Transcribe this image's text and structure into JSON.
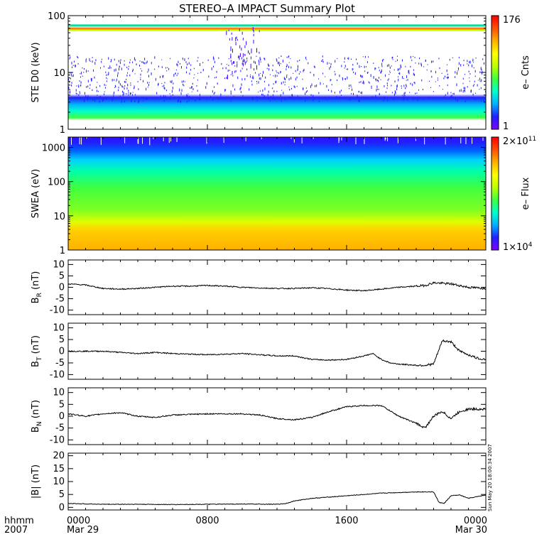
{
  "title": "STEREO–A IMPACT Summary Plot",
  "timestamp": "Sun May 20 18:00:34 2007",
  "colors": {
    "trace": "#000000",
    "colorbar_stops": [
      "#7f00ff",
      "#2020ff",
      "#00b0ff",
      "#00ffcc",
      "#40ff40",
      "#c0ff00",
      "#ffff00",
      "#ffb000",
      "#ff5000",
      "#ff0000"
    ]
  },
  "xaxis": {
    "corner_top": "hhmm",
    "corner_bottom": "2007",
    "ticks": [
      {
        "value": 0,
        "label": "0000",
        "sublabel": "Mar 29"
      },
      {
        "value": 8,
        "label": "0800",
        "sublabel": ""
      },
      {
        "value": 16,
        "label": "1600",
        "sublabel": ""
      },
      {
        "value": 24,
        "label": "0000",
        "sublabel": "Mar 30"
      }
    ],
    "range_hours": [
      0,
      24
    ]
  },
  "chart_data": [
    {
      "type": "heatmap",
      "ylabel": "STE D0 (keV)",
      "yscale": "log",
      "ylim": [
        1,
        100
      ],
      "yticks": [
        "1",
        "10",
        "100"
      ],
      "colorbar": {
        "label": "e– Cnts",
        "max": "176",
        "min": "1",
        "scale": "log"
      }
    },
    {
      "type": "heatmap",
      "ylabel": "SWEA (eV)",
      "yscale": "log",
      "ylim": [
        1,
        2000
      ],
      "yticks": [
        "1",
        "10",
        "100",
        "1000"
      ],
      "colorbar": {
        "label": "e– Flux",
        "max": "2×10",
        "max_exp": "11",
        "min": "1×10",
        "min_exp": "4",
        "scale": "log"
      }
    },
    {
      "type": "line",
      "ylabel": "B",
      "ysub": "R",
      "yunit": "(nT)",
      "ylim": [
        -12,
        12
      ],
      "yticks": [
        "10",
        "5",
        "0",
        "-5",
        "-10"
      ],
      "x": [
        0,
        1,
        2,
        3,
        4,
        5,
        6,
        7,
        8,
        9,
        10,
        11,
        12,
        13,
        14,
        15,
        16,
        17,
        18,
        19,
        20,
        20.5,
        21,
        22,
        23,
        24
      ],
      "y": [
        1.5,
        1,
        -0.5,
        -0.8,
        -0.5,
        0,
        0.5,
        0.5,
        0.8,
        0.5,
        0,
        -0.3,
        -0.5,
        -0.5,
        -0.2,
        -0.6,
        -1.2,
        -1.5,
        -0.8,
        0,
        0.5,
        0.8,
        2,
        1.5,
        0,
        -0.5
      ]
    },
    {
      "type": "line",
      "ylabel": "B",
      "ysub": "T",
      "yunit": "(nT)",
      "ylim": [
        -12,
        12
      ],
      "yticks": [
        "10",
        "5",
        "0",
        "-5",
        "-10"
      ],
      "x": [
        0,
        2,
        4,
        5,
        6,
        8,
        10,
        11,
        12,
        13,
        14,
        15,
        16,
        17,
        17.5,
        18,
        18.5,
        19,
        20,
        20.5,
        21,
        21.5,
        22,
        22.5,
        23,
        23.5,
        24
      ],
      "y": [
        0,
        0,
        -1,
        -0.5,
        -1,
        -1.5,
        -1,
        -1.5,
        -2,
        -2,
        -3.5,
        -3.8,
        -3.5,
        -2,
        -1,
        -3.5,
        -5,
        -5.5,
        -6,
        -6,
        -5.5,
        4.5,
        4,
        0,
        -1.5,
        -3,
        -3.5
      ]
    },
    {
      "type": "line",
      "ylabel": "B",
      "ysub": "N",
      "yunit": "(nT)",
      "ylim": [
        -12,
        12
      ],
      "yticks": [
        "10",
        "5",
        "0",
        "-5",
        "-10"
      ],
      "x": [
        0,
        1,
        2,
        3,
        4,
        5,
        6,
        8,
        10,
        11,
        12,
        13,
        14,
        15,
        16,
        17,
        18,
        19,
        20,
        20.5,
        21,
        21.5,
        22,
        22.5,
        23,
        24
      ],
      "y": [
        1,
        0,
        1,
        1.5,
        0,
        -0.5,
        0.5,
        1,
        1,
        0.5,
        -1,
        -1.5,
        -0.5,
        2,
        4,
        4.5,
        4.5,
        0,
        -3,
        -5,
        0,
        2,
        -1,
        2,
        3,
        3
      ]
    },
    {
      "type": "line",
      "ylabel": "|B|",
      "ysub": "",
      "yunit": "(nT)",
      "ylim": [
        -1,
        21
      ],
      "yticks": [
        "20",
        "15",
        "10",
        "5",
        "0"
      ],
      "x": [
        0,
        2,
        4,
        6,
        8,
        10,
        12,
        12.5,
        13,
        14,
        16,
        18,
        20,
        21,
        21.3,
        21.6,
        22,
        22.5,
        23,
        24
      ],
      "y": [
        1.5,
        1.2,
        1.2,
        1.1,
        1.2,
        1.3,
        1.2,
        1.5,
        2.5,
        3.5,
        4.5,
        5.5,
        6,
        6,
        2,
        1.5,
        4.5,
        4.8,
        3.5,
        4.8
      ]
    }
  ]
}
